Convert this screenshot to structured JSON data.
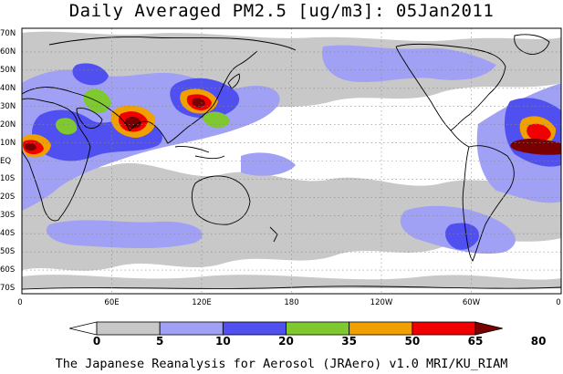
{
  "title": "Daily Averaged PM2.5 [ug/m3]: 05Jan2011",
  "lat_labels": [
    "70N",
    "60N",
    "50N",
    "40N",
    "30N",
    "20N",
    "10N",
    "EQ",
    "10S",
    "20S",
    "30S",
    "40S",
    "50S",
    "60S",
    "70S"
  ],
  "lon_labels": [
    "0",
    "60E",
    "120E",
    "180",
    "120W",
    "60W",
    "0"
  ],
  "colorbar": {
    "levels": [
      "0",
      "5",
      "10",
      "20",
      "35",
      "50",
      "65",
      "80"
    ],
    "colors": [
      "#ffffff",
      "#c8c8c8",
      "#a0a0f5",
      "#5050f0",
      "#80c830",
      "#f0a000",
      "#f00000",
      "#780000"
    ]
  },
  "footer": "The Japanese Reanalysis for Aerosol (JRAero) v1.0 MRI/KU_RIAM"
}
